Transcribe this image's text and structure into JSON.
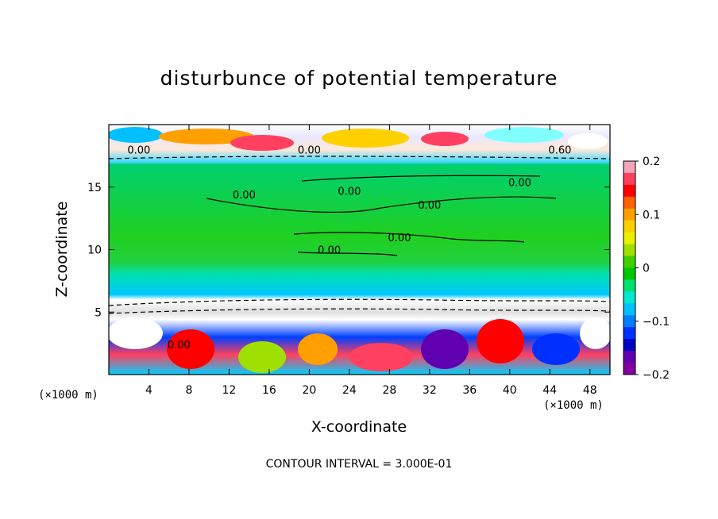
{
  "title": "disturbunce of potential temperature",
  "footer": "CONTOUR INTERVAL = 3.000E-01",
  "chart_data": {
    "type": "heatmap",
    "title": "disturbunce of potential temperature",
    "xlabel": "X-coordinate",
    "ylabel": "Z-coordinate",
    "x_unit_label_left": "(×1000 m)",
    "x_unit_label_right": "(×1000 m)",
    "xlim": [
      0,
      50
    ],
    "ylim": [
      0,
      20
    ],
    "x_ticks": [
      "4",
      "8",
      "12",
      "16",
      "20",
      "24",
      "28",
      "32",
      "36",
      "40",
      "44",
      "48"
    ],
    "y_ticks": [
      "5",
      "10",
      "15"
    ],
    "colorbar": {
      "range": [
        -0.2,
        0.2
      ],
      "ticks": [
        "0.2",
        "0.1",
        "0",
        "−0.1",
        "−0.2"
      ],
      "colors": [
        "#f4a6b8",
        "#ff4060",
        "#ff0000",
        "#ff6000",
        "#ffa000",
        "#ffd000",
        "#e8f000",
        "#a0e000",
        "#40d000",
        "#00c800",
        "#00e070",
        "#00e8d0",
        "#00c0ff",
        "#0080ff",
        "#0030ff",
        "#0000c0",
        "#6000b0",
        "#8000a0"
      ]
    },
    "contour_labels": [
      "0.00",
      "0.00",
      "0.60",
      "0.00",
      "0.00",
      "0.00",
      "0.00",
      "0.00",
      "0.00",
      "0.00"
    ],
    "contour_interval": "3.000E-01",
    "legend": "colorbar-right"
  }
}
